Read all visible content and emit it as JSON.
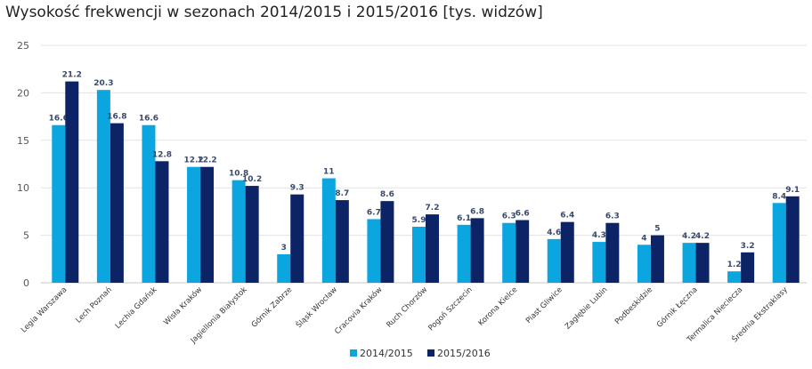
{
  "chart_data": {
    "type": "bar",
    "title": "Wysokość frekwencji w sezonach 2014/2015 i 2015/2016 [tys. widzów]",
    "xlabel": "",
    "ylabel": "",
    "ylim": [
      0,
      25
    ],
    "yticks": [
      0,
      5,
      10,
      15,
      20,
      25
    ],
    "grid": true,
    "legend_position": "bottom",
    "categories": [
      "Legia Warszawa",
      "Lech Poznań",
      "Lechia Gdańsk",
      "Wisła Kraków",
      "Jagiellonia Białystok",
      "Górnik Zabrze",
      "Śląsk Wrocław",
      "Cracovia Kraków",
      "Ruch Chorzów",
      "Pogoń Szczecin",
      "Korona Kielce",
      "Piast Gliwice",
      "Zagłębie Lubin",
      "Podbeskidzie",
      "Górnik Łęczna",
      "Termalica Nieciecza",
      "Średnia Ekstraklasy"
    ],
    "series": [
      {
        "name": "2014/2015",
        "color": "#0ba5e0",
        "values": [
          16.6,
          20.3,
          16.6,
          12.2,
          10.8,
          3,
          11,
          6.7,
          5.9,
          6.1,
          6.3,
          4.6,
          4.3,
          4,
          4.2,
          1.2,
          8.4
        ]
      },
      {
        "name": "2015/2016",
        "color": "#0c2466",
        "values": [
          21.2,
          16.8,
          12.8,
          12.2,
          10.2,
          9.3,
          8.7,
          8.6,
          7.2,
          6.8,
          6.6,
          6.4,
          6.3,
          5,
          4.2,
          3.2,
          9.1
        ]
      }
    ]
  }
}
